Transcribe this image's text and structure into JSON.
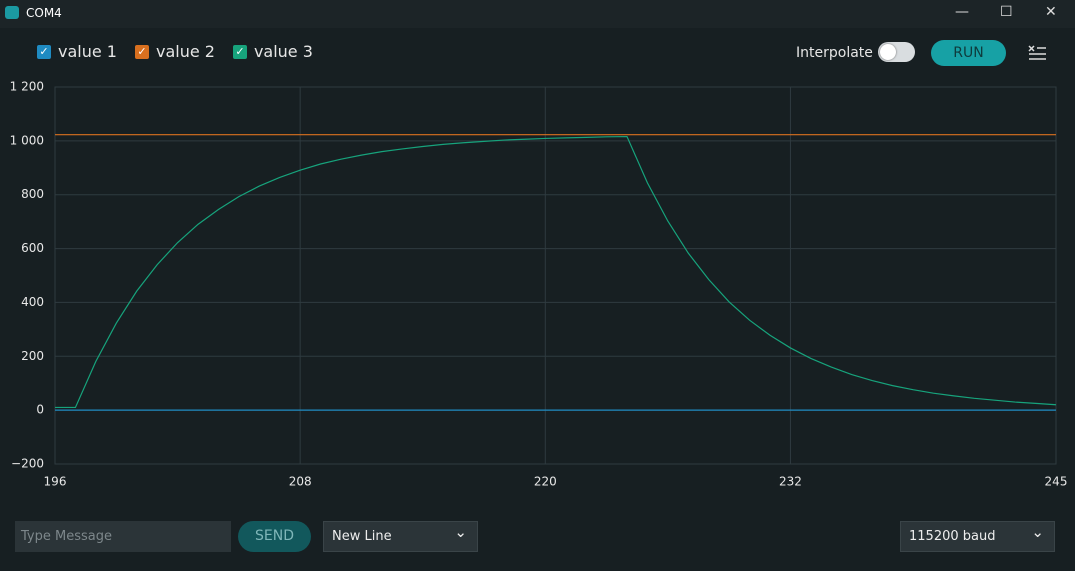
{
  "window": {
    "title": "COM4"
  },
  "toolbar": {
    "interpolate_label": "Interpolate",
    "run_button": "RUN"
  },
  "chart_data": {
    "type": "line",
    "x": [
      196,
      197,
      198,
      199,
      200,
      201,
      202,
      203,
      204,
      205,
      206,
      207,
      208,
      209,
      210,
      211,
      212,
      213,
      214,
      215,
      216,
      217,
      218,
      219,
      220,
      221,
      222,
      223,
      224,
      225,
      226,
      227,
      228,
      229,
      230,
      231,
      232,
      233,
      234,
      235,
      236,
      237,
      238,
      239,
      240,
      241,
      242,
      243,
      244,
      245
    ],
    "series": [
      {
        "name": "value 1",
        "color": "#1f8bc2",
        "values": [
          0,
          0,
          0,
          0,
          0,
          0,
          0,
          0,
          0,
          0,
          0,
          0,
          0,
          0,
          0,
          0,
          0,
          0,
          0,
          0,
          0,
          0,
          0,
          0,
          0,
          0,
          0,
          0,
          0,
          0,
          0,
          0,
          0,
          0,
          0,
          0,
          0,
          0,
          0,
          0,
          0,
          0,
          0,
          0,
          0,
          0,
          0,
          0,
          0,
          0
        ]
      },
      {
        "name": "value 2",
        "color": "#d9701f",
        "values": [
          1023,
          1023,
          1023,
          1023,
          1023,
          1023,
          1023,
          1023,
          1023,
          1023,
          1023,
          1023,
          1023,
          1023,
          1023,
          1023,
          1023,
          1023,
          1023,
          1023,
          1023,
          1023,
          1023,
          1023,
          1023,
          1023,
          1023,
          1023,
          1023,
          1023,
          1023,
          1023,
          1023,
          1023,
          1023,
          1023,
          1023,
          1023,
          1023,
          1023,
          1023,
          1023,
          1023,
          1023,
          1023,
          1023,
          1023,
          1023,
          1023,
          1023
        ]
      },
      {
        "name": "value 3",
        "color": "#17a37c",
        "values": [
          10,
          10,
          181,
          323,
          442,
          540,
          622,
          690,
          745,
          793,
          832,
          864,
          891,
          914,
          932,
          947,
          960,
          970,
          979,
          987,
          993,
          998,
          1003,
          1006,
          1009,
          1011,
          1013,
          1015,
          1016,
          844,
          702,
          583,
          485,
          402,
          334,
          278,
          231,
          192,
          160,
          132,
          110,
          91,
          76,
          63,
          53,
          44,
          37,
          30,
          25,
          20
        ]
      }
    ],
    "xlim": [
      196,
      245
    ],
    "xticks": [
      196,
      208,
      220,
      232,
      245
    ],
    "ylim": [
      -200,
      1200
    ],
    "yticks": [
      {
        "value": -200,
        "label": "−200"
      },
      0,
      200,
      400,
      600,
      800,
      {
        "value": 1000,
        "label": "1 000"
      },
      {
        "value": 1200,
        "label": "1 200"
      }
    ],
    "grid": true
  },
  "footer": {
    "message_placeholder": "Type Message",
    "send_button": "SEND",
    "line_ending": "New Line",
    "baud_rate": "115200 baud"
  }
}
